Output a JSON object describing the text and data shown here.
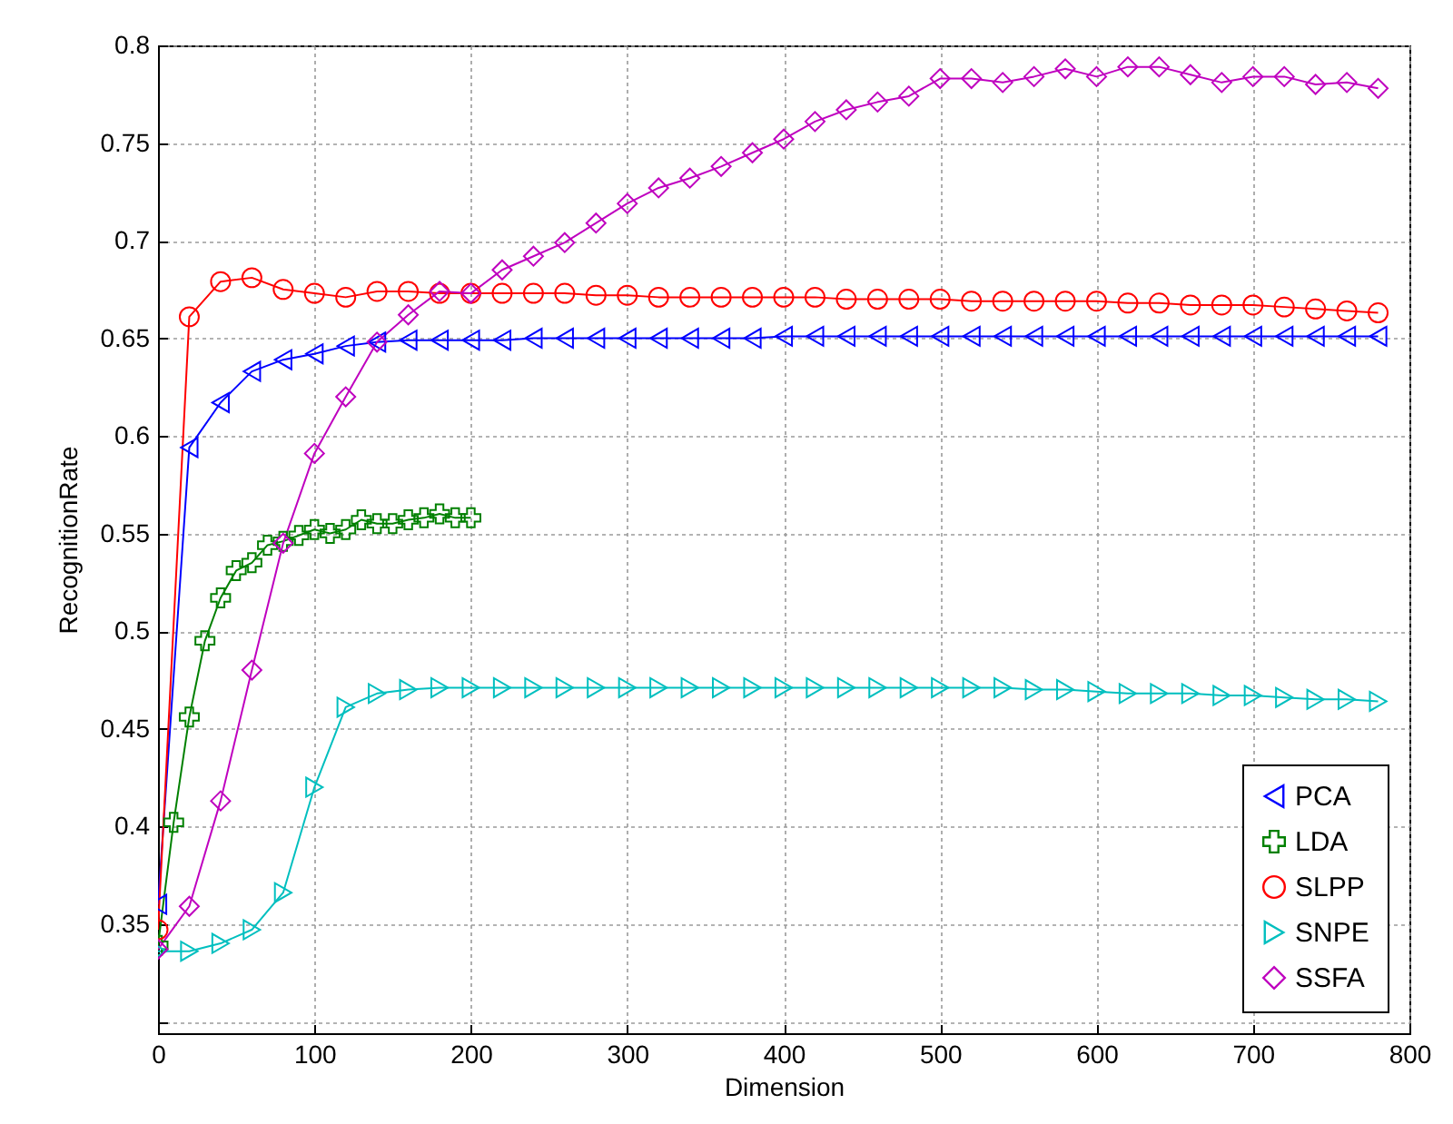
{
  "chart_data": {
    "type": "line",
    "xlabel": "Dimension",
    "ylabel": "RecognitionRate",
    "xlim": [
      0,
      800
    ],
    "xticks": [
      0,
      100,
      200,
      300,
      400,
      500,
      600,
      700,
      800
    ],
    "ylim": [
      0.294,
      0.8
    ],
    "yticks": [
      {
        "value": 0.3,
        "label": null
      },
      0.35,
      0.4,
      0.45,
      0.5,
      0.55,
      0.6,
      0.65,
      0.7,
      0.75,
      0.8
    ],
    "grid": true,
    "legend": "bottom right",
    "line_style": "solid",
    "series": [
      {
        "name": "PCA",
        "color": "#0000ff",
        "marker": "triangle-left",
        "x": [
          0,
          20,
          40,
          60,
          80,
          100,
          120,
          140,
          160,
          180,
          200,
          220,
          240,
          260,
          280,
          300,
          320,
          340,
          360,
          380,
          400,
          420,
          440,
          460,
          480,
          500,
          520,
          540,
          560,
          580,
          600,
          620,
          640,
          660,
          680,
          700,
          720,
          740,
          760,
          780
        ],
        "values": [
          0.36,
          0.594,
          0.617,
          0.633,
          0.639,
          0.642,
          0.646,
          0.648,
          0.649,
          0.649,
          0.649,
          0.649,
          0.65,
          0.65,
          0.65,
          0.65,
          0.65,
          0.65,
          0.65,
          0.65,
          0.651,
          0.651,
          0.651,
          0.651,
          0.651,
          0.651,
          0.651,
          0.651,
          0.651,
          0.651,
          0.651,
          0.651,
          0.651,
          0.651,
          0.651,
          0.651,
          0.651,
          0.651,
          0.651,
          0.651
        ]
      },
      {
        "name": "LDA",
        "color": "#008000",
        "marker": "cross",
        "x": [
          0,
          10,
          20,
          30,
          40,
          50,
          60,
          70,
          80,
          90,
          100,
          110,
          120,
          130,
          140,
          150,
          160,
          170,
          180,
          190,
          200
        ],
        "values": [
          0.339,
          0.402,
          0.456,
          0.495,
          0.517,
          0.531,
          0.535,
          0.544,
          0.546,
          0.549,
          0.552,
          0.55,
          0.552,
          0.557,
          0.555,
          0.555,
          0.557,
          0.558,
          0.56,
          0.558,
          0.558
        ]
      },
      {
        "name": "SLPP",
        "color": "#ff0000",
        "marker": "circle",
        "x": [
          0,
          20,
          40,
          60,
          80,
          100,
          120,
          140,
          160,
          180,
          200,
          220,
          240,
          260,
          280,
          300,
          320,
          340,
          360,
          380,
          400,
          420,
          440,
          460,
          480,
          500,
          520,
          540,
          560,
          580,
          600,
          620,
          640,
          660,
          680,
          700,
          720,
          740,
          760,
          780
        ],
        "values": [
          0.347,
          0.661,
          0.679,
          0.681,
          0.675,
          0.673,
          0.671,
          0.674,
          0.674,
          0.673,
          0.673,
          0.673,
          0.673,
          0.673,
          0.672,
          0.672,
          0.671,
          0.671,
          0.671,
          0.671,
          0.671,
          0.671,
          0.67,
          0.67,
          0.67,
          0.67,
          0.669,
          0.669,
          0.669,
          0.669,
          0.669,
          0.668,
          0.668,
          0.667,
          0.667,
          0.667,
          0.666,
          0.665,
          0.664,
          0.663
        ]
      },
      {
        "name": "SNPE",
        "color": "#00bfbf",
        "marker": "triangle-right",
        "x": [
          0,
          20,
          40,
          60,
          80,
          100,
          120,
          140,
          160,
          180,
          200,
          220,
          240,
          260,
          280,
          300,
          320,
          340,
          360,
          380,
          400,
          420,
          440,
          460,
          480,
          500,
          520,
          540,
          560,
          580,
          600,
          620,
          640,
          660,
          680,
          700,
          720,
          740,
          760,
          780
        ],
        "values": [
          0.336,
          0.336,
          0.34,
          0.347,
          0.366,
          0.42,
          0.461,
          0.468,
          0.47,
          0.471,
          0.471,
          0.471,
          0.471,
          0.471,
          0.471,
          0.471,
          0.471,
          0.471,
          0.471,
          0.471,
          0.471,
          0.471,
          0.471,
          0.471,
          0.471,
          0.471,
          0.471,
          0.471,
          0.47,
          0.47,
          0.469,
          0.468,
          0.468,
          0.468,
          0.467,
          0.467,
          0.466,
          0.465,
          0.465,
          0.464
        ]
      },
      {
        "name": "SSFA",
        "color": "#bf00bf",
        "marker": "diamond",
        "x": [
          0,
          20,
          40,
          60,
          80,
          100,
          120,
          140,
          160,
          180,
          200,
          220,
          240,
          260,
          280,
          300,
          320,
          340,
          360,
          380,
          400,
          420,
          440,
          460,
          480,
          500,
          520,
          540,
          560,
          580,
          600,
          620,
          640,
          660,
          680,
          700,
          720,
          740,
          760,
          780
        ],
        "values": [
          0.337,
          0.359,
          0.413,
          0.48,
          0.545,
          0.591,
          0.62,
          0.648,
          0.662,
          0.674,
          0.673,
          0.685,
          0.692,
          0.699,
          0.709,
          0.719,
          0.727,
          0.732,
          0.738,
          0.745,
          0.752,
          0.761,
          0.767,
          0.771,
          0.774,
          0.783,
          0.783,
          0.781,
          0.784,
          0.788,
          0.784,
          0.789,
          0.789,
          0.785,
          0.781,
          0.784,
          0.784,
          0.78,
          0.781,
          0.778
        ]
      }
    ]
  }
}
